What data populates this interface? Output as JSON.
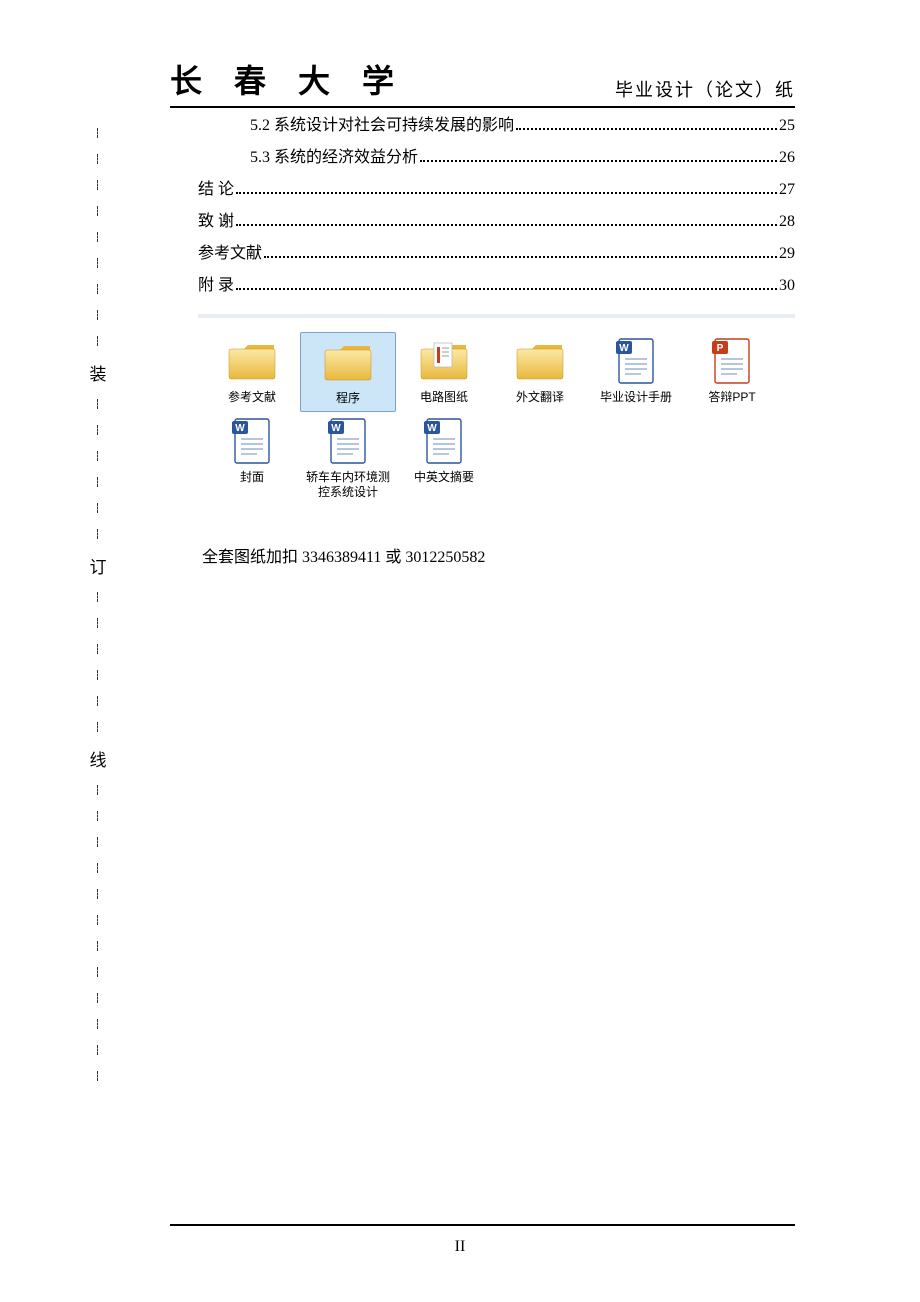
{
  "header": {
    "university": "长 春 大 学",
    "subtitle": "毕业设计（论文）纸"
  },
  "binding_chars": [
    "装",
    "订",
    "线"
  ],
  "toc": [
    {
      "indent": 1,
      "label": "5.2  系统设计对社会可持续发展的影响",
      "page": "25"
    },
    {
      "indent": 1,
      "label": "5.3  系统的经济效益分析",
      "page": "26"
    },
    {
      "indent": 0,
      "label": "结    论",
      "page": "27"
    },
    {
      "indent": 0,
      "label": "致    谢",
      "page": "28"
    },
    {
      "indent": 0,
      "label": "参考文献",
      "page": "29"
    },
    {
      "indent": 0,
      "label": "附  录",
      "page": "30"
    }
  ],
  "files": [
    {
      "name": "参考文献",
      "type": "folder",
      "selected": false
    },
    {
      "name": "程序",
      "type": "folder",
      "selected": true
    },
    {
      "name": "电路图纸",
      "type": "folder-doc",
      "selected": false
    },
    {
      "name": "外文翻译",
      "type": "folder",
      "selected": false
    },
    {
      "name": "毕业设计手册",
      "type": "word",
      "selected": false
    },
    {
      "name": "答辩PPT",
      "type": "ppt",
      "selected": false
    },
    {
      "name": "封面",
      "type": "word",
      "selected": false
    },
    {
      "name": "轿车车内环境测控系统设计",
      "type": "word",
      "selected": false
    },
    {
      "name": "中英文摘要",
      "type": "word",
      "selected": false
    }
  ],
  "contact": "全套图纸加扣  3346389411 或 3012250582",
  "page_number": "II",
  "colors": {
    "folder_light": "#fce9a5",
    "folder_dark": "#e8b83e",
    "word_border": "#2b579a",
    "word_badge": "#2b579a",
    "ppt_border": "#c43e1c",
    "ppt_badge": "#c43e1c",
    "selection_bg": "#cde6f7",
    "selection_border": "#7da2ce",
    "browser_top": "#e8ecf5"
  }
}
